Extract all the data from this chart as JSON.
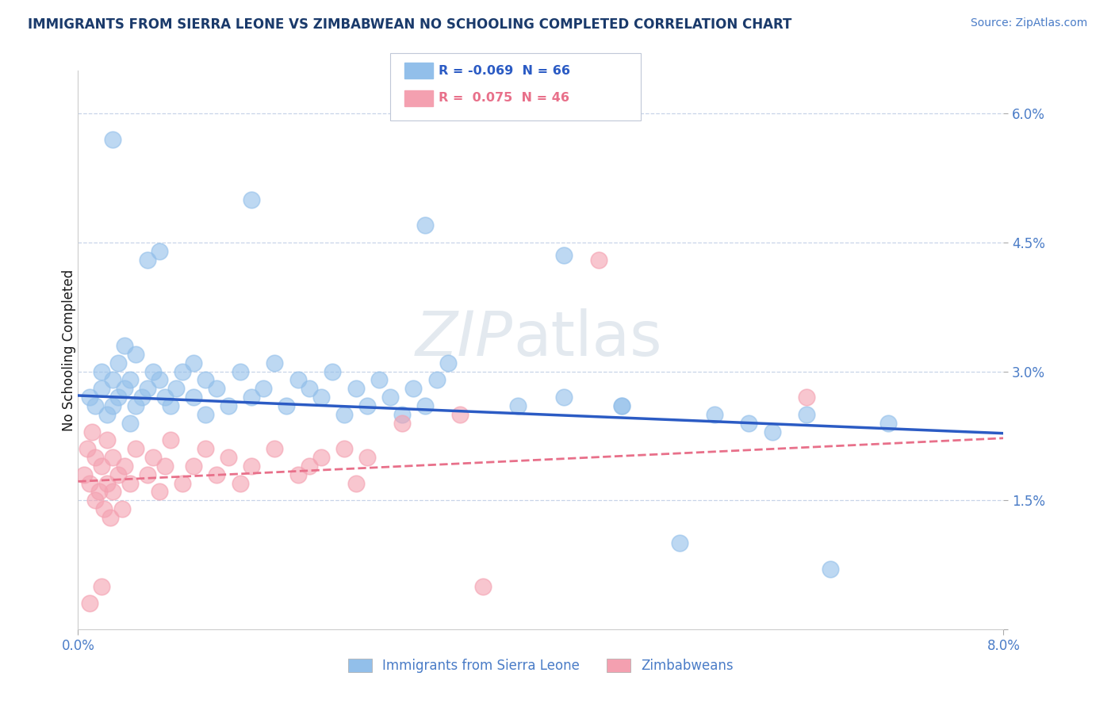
{
  "title": "IMMIGRANTS FROM SIERRA LEONE VS ZIMBABWEAN NO SCHOOLING COMPLETED CORRELATION CHART",
  "source": "Source: ZipAtlas.com",
  "ylabel": "No Schooling Completed",
  "ylabel_ticks": [
    0.0,
    1.5,
    3.0,
    4.5,
    6.0
  ],
  "xmin": 0.0,
  "xmax": 8.0,
  "ymin": 0.0,
  "ymax": 6.5,
  "legend_label1": "Immigrants from Sierra Leone",
  "legend_label2": "Zimbabweans",
  "r1": -0.069,
  "n1": 66,
  "r2": 0.075,
  "n2": 46,
  "color1": "#92BFEA",
  "color2": "#F4A0B0",
  "trendline1_color": "#2B5BC4",
  "trendline2_color": "#E8708A",
  "watermark_zip": "ZIP",
  "watermark_atlas": "atlas",
  "title_color": "#1a3a6b",
  "axis_color": "#4a7cc7",
  "label_color": "#1a1a1a",
  "grid_color": "#c8d4e8",
  "legend_text_color": "#1a1a1a",
  "legend_r1_color": "#2B5BC4",
  "legend_r2_color": "#E8708A"
}
